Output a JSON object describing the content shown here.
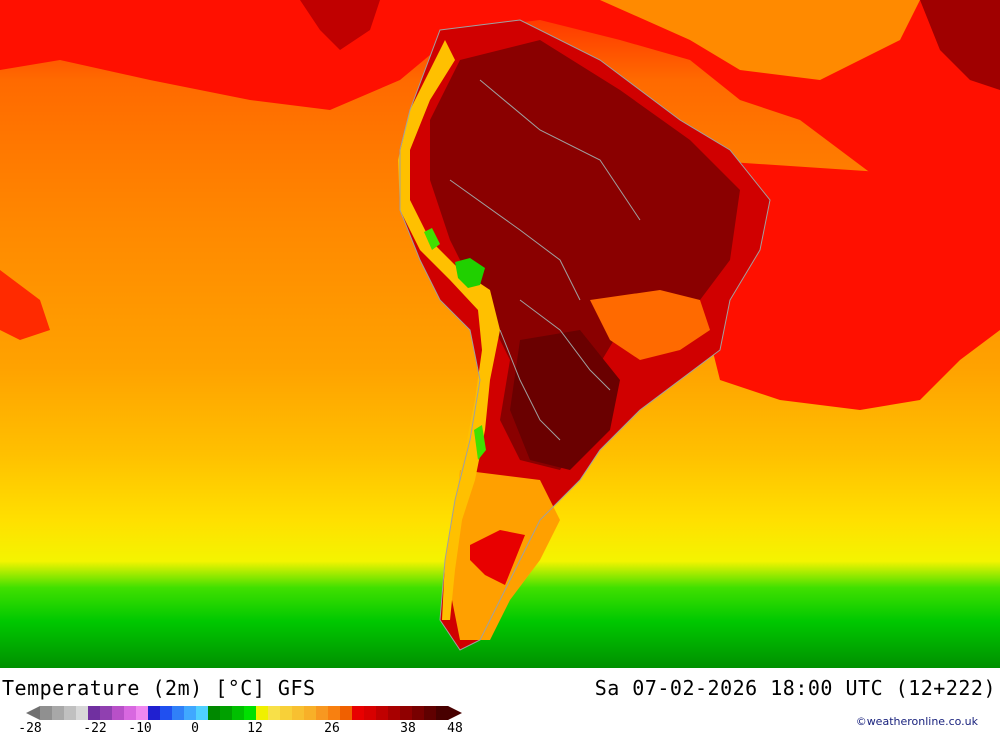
{
  "header": {
    "title": "Temperature (2m) [°C] GFS",
    "valid_time": "Sa 07-02-2026 18:00 UTC (12+222)"
  },
  "legend": {
    "tick_labels": [
      "-28",
      "-22",
      "-10",
      "0",
      "12",
      "26",
      "38",
      "48"
    ],
    "colors": [
      "#909090",
      "#a8a8a8",
      "#c0c0c0",
      "#d8d8d8",
      "#7030a0",
      "#9040b0",
      "#b850c8",
      "#d868e0",
      "#f088f0",
      "#2020d0",
      "#2050f0",
      "#3080f8",
      "#40a8ff",
      "#50d0ff",
      "#008800",
      "#00a000",
      "#00c000",
      "#00e000",
      "#f0f000",
      "#f8e048",
      "#f8d038",
      "#f8c030",
      "#f8b028",
      "#f89820",
      "#f88010",
      "#f06000",
      "#e80000",
      "#d80000",
      "#c00000",
      "#a80000",
      "#900000",
      "#780000",
      "#600000",
      "#480000"
    ]
  },
  "map": {
    "region": "South America",
    "palette": {
      "hot": "#7a0000",
      "warm": "#ff1000",
      "mild": "#ff8c00",
      "cool": "#ffd000",
      "cold": "#00cc00"
    }
  },
  "credit": "©weatheronline.co.uk"
}
